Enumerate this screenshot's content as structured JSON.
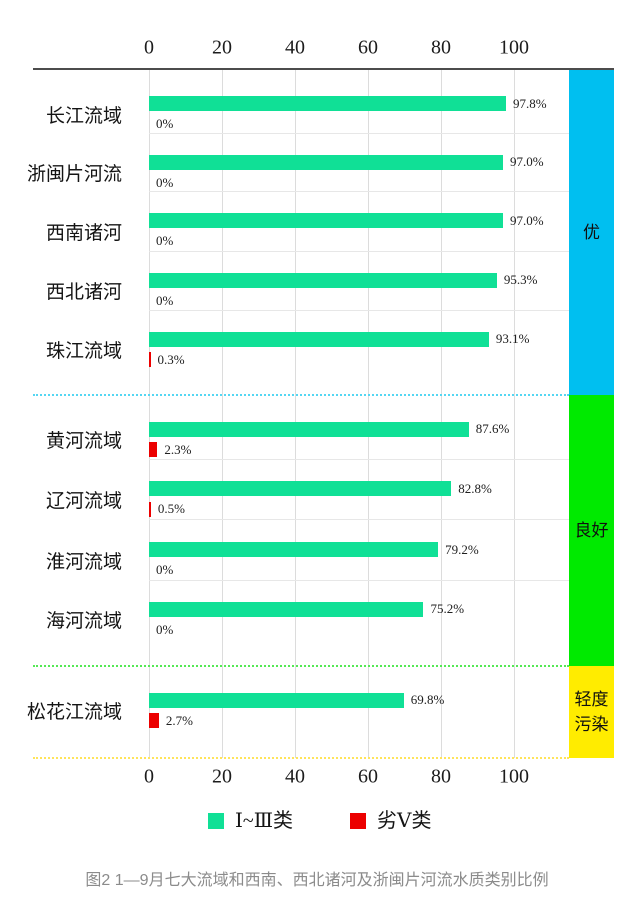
{
  "figure": {
    "caption": "图2  1—9月七大流域和西南、西北诸河及浙闽片河流水质类别比例"
  },
  "legend": {
    "items": [
      {
        "label": "Ⅰ~Ⅲ类",
        "color": "#10e096"
      },
      {
        "label": "劣Ⅴ类",
        "color": "#ec0000"
      }
    ]
  },
  "chart_data": {
    "type": "bar",
    "orientation": "horizontal",
    "unit": "%",
    "value_axis": {
      "min": 0,
      "max": 100,
      "ticks": [
        0,
        20,
        40,
        60,
        80,
        100
      ],
      "position": "top-and-bottom"
    },
    "grid": true,
    "legend_position": "bottom",
    "series": [
      {
        "name": "Ⅰ~Ⅲ类",
        "color": "#10e096"
      },
      {
        "name": "劣Ⅴ类",
        "color": "#ec0000"
      }
    ],
    "bands": [
      {
        "label": "优",
        "color": "#00bff0",
        "separator_color": "#55d6f2",
        "rows": [
          {
            "category": "长江流域",
            "i_to_iii_pct": 97.8,
            "i_to_iii_label": "97.8%",
            "inferior_v_pct": 0,
            "inferior_v_label": "0%"
          },
          {
            "category": "浙闽片河流",
            "i_to_iii_pct": 97.0,
            "i_to_iii_label": "97.0%",
            "inferior_v_pct": 0,
            "inferior_v_label": "0%"
          },
          {
            "category": "西南诸河",
            "i_to_iii_pct": 97.0,
            "i_to_iii_label": "97.0%",
            "inferior_v_pct": 0,
            "inferior_v_label": "0%"
          },
          {
            "category": "西北诸河",
            "i_to_iii_pct": 95.3,
            "i_to_iii_label": "95.3%",
            "inferior_v_pct": 0,
            "inferior_v_label": "0%"
          },
          {
            "category": "珠江流域",
            "i_to_iii_pct": 93.1,
            "i_to_iii_label": "93.1%",
            "inferior_v_pct": 0.3,
            "inferior_v_label": "0.3%"
          }
        ]
      },
      {
        "label": "良好",
        "color": "#00ea00",
        "separator_color": "#55e855",
        "rows": [
          {
            "category": "黄河流域",
            "i_to_iii_pct": 87.6,
            "i_to_iii_label": "87.6%",
            "inferior_v_pct": 2.3,
            "inferior_v_label": "2.3%"
          },
          {
            "category": "辽河流域",
            "i_to_iii_pct": 82.8,
            "i_to_iii_label": "82.8%",
            "inferior_v_pct": 0.5,
            "inferior_v_label": "0.5%"
          },
          {
            "category": "淮河流域",
            "i_to_iii_pct": 79.2,
            "i_to_iii_label": "79.2%",
            "inferior_v_pct": 0,
            "inferior_v_label": "0%"
          },
          {
            "category": "海河流域",
            "i_to_iii_pct": 75.2,
            "i_to_iii_label": "75.2%",
            "inferior_v_pct": 0,
            "inferior_v_label": "0%"
          }
        ]
      },
      {
        "label": "轻度污染",
        "label_lines": [
          "轻度",
          "污染"
        ],
        "color": "#ffec00",
        "separator_color": "#ffe45a",
        "rows": [
          {
            "category": "松花江流域",
            "i_to_iii_pct": 69.8,
            "i_to_iii_label": "69.8%",
            "inferior_v_pct": 2.7,
            "inferior_v_label": "2.7%"
          }
        ]
      }
    ]
  }
}
